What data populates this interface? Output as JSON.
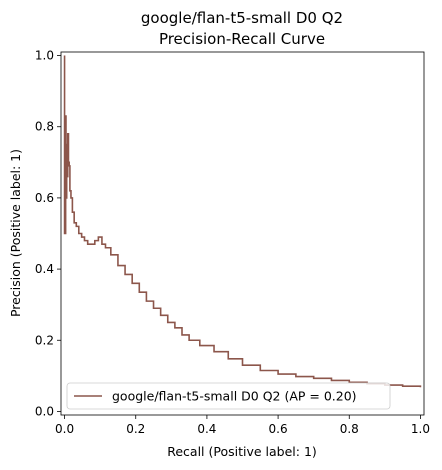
{
  "chart_data": {
    "type": "line",
    "title": "google/flan-t5-small D0 Q2\nPrecision-Recall Curve",
    "xlabel": "Recall (Positive label: 1)",
    "ylabel": "Precision (Positive label: 1)",
    "xlim": [
      -0.01,
      1.01
    ],
    "ylim": [
      -0.01,
      1.01
    ],
    "xticks": [
      "0.0",
      "0.2",
      "0.4",
      "0.6",
      "0.8",
      "1.0"
    ],
    "yticks": [
      "0.0",
      "0.2",
      "0.4",
      "0.6",
      "0.8",
      "1.0"
    ],
    "grid": false,
    "legend_position": "lower-left",
    "series": [
      {
        "name": "google/flan-t5-small D0 Q2 (AP = 0.20)",
        "color": "#8c564b",
        "x": [
          0.0,
          0.0,
          0.003,
          0.004,
          0.006,
          0.008,
          0.009,
          0.011,
          0.013,
          0.015,
          0.018,
          0.022,
          0.027,
          0.033,
          0.04,
          0.048,
          0.056,
          0.065,
          0.075,
          0.085,
          0.095,
          0.105,
          0.115,
          0.13,
          0.15,
          0.17,
          0.19,
          0.21,
          0.23,
          0.25,
          0.27,
          0.29,
          0.31,
          0.33,
          0.35,
          0.38,
          0.42,
          0.46,
          0.5,
          0.55,
          0.6,
          0.65,
          0.7,
          0.75,
          0.8,
          0.85,
          0.9,
          0.95,
          1.0
        ],
        "y": [
          1.0,
          0.5,
          0.83,
          0.6,
          0.75,
          0.66,
          0.78,
          0.7,
          0.69,
          0.62,
          0.6,
          0.56,
          0.53,
          0.52,
          0.5,
          0.49,
          0.48,
          0.47,
          0.47,
          0.48,
          0.49,
          0.47,
          0.46,
          0.44,
          0.41,
          0.385,
          0.36,
          0.335,
          0.31,
          0.29,
          0.27,
          0.25,
          0.235,
          0.215,
          0.2,
          0.185,
          0.168,
          0.148,
          0.13,
          0.115,
          0.105,
          0.098,
          0.093,
          0.087,
          0.082,
          0.078,
          0.074,
          0.071,
          0.068
        ]
      }
    ]
  }
}
